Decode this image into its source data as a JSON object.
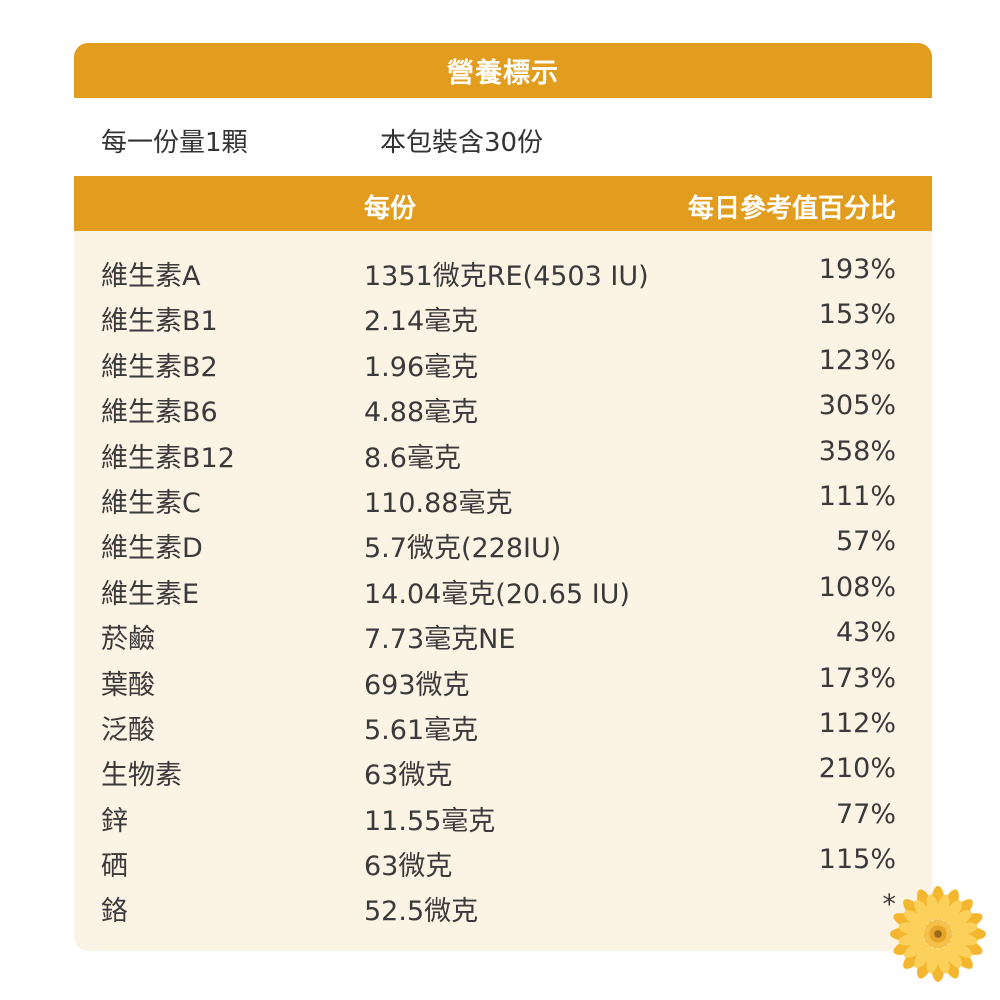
{
  "title": "營養標示",
  "serving": {
    "size": "每一份量1顆",
    "per_pack": "本包裝含30份"
  },
  "header": {
    "col_amount": "每份",
    "col_dv": "每日參考值百分比"
  },
  "rows": [
    {
      "name": "維生素A",
      "amount": "1351微克RE(4503 IU)",
      "dv": "193%"
    },
    {
      "name": "維生素B1",
      "amount": "2.14毫克",
      "dv": "153%"
    },
    {
      "name": "維生素B2",
      "amount": "1.96毫克",
      "dv": "123%"
    },
    {
      "name": "維生素B6",
      "amount": "4.88毫克",
      "dv": "305%"
    },
    {
      "name": "維生素B12",
      "amount": "8.6毫克",
      "dv": "358%"
    },
    {
      "name": "維生素C",
      "amount": "110.88毫克",
      "dv": "111%"
    },
    {
      "name": "維生素D",
      "amount": "5.7微克(228IU)",
      "dv": "57%"
    },
    {
      "name": "維生素E",
      "amount": "14.04毫克(20.65 IU)",
      "dv": "108%"
    },
    {
      "name": "菸鹼",
      "amount": "7.73毫克NE",
      "dv": "43%"
    },
    {
      "name": "葉酸",
      "amount": "693微克",
      "dv": "173%"
    },
    {
      "name": "泛酸",
      "amount": "5.61毫克",
      "dv": "112%"
    },
    {
      "name": "生物素",
      "amount": "63微克",
      "dv": "210%"
    },
    {
      "name": "鋅",
      "amount": "11.55毫克",
      "dv": "77%"
    },
    {
      "name": "硒",
      "amount": "63微克",
      "dv": "115%"
    },
    {
      "name": "鉻",
      "amount": "52.5微克",
      "dv": "*"
    }
  ],
  "colors": {
    "accent": "#e29c1e",
    "panel_bg": "#fbf3e4",
    "text": "#3a3a3a"
  },
  "icons": {
    "decoration": "sunflower-icon"
  }
}
